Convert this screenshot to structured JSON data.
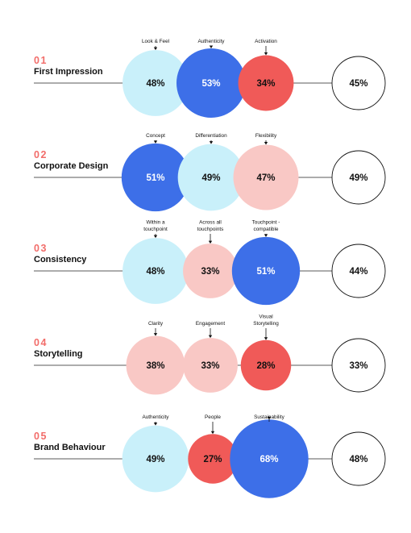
{
  "colors": {
    "dark_blue": "#3d6fe8",
    "light_blue": "#c9f0fa",
    "pink": "#f9c8c5",
    "red": "#f05a58",
    "total_fill": "#ffffff",
    "number_color": "#f26d6a",
    "line": "#222222"
  },
  "chart_data": {
    "type": "bubble-rows",
    "sections": [
      {
        "number": "01",
        "title": "First Impression",
        "bubbles": [
          {
            "label": [
              "Look & Feel"
            ],
            "value": 48,
            "display": "48%",
            "color": "light_blue"
          },
          {
            "label": [
              "Authenticity"
            ],
            "value": 53,
            "display": "53%",
            "color": "dark_blue"
          },
          {
            "label": [
              "Activation"
            ],
            "value": 34,
            "display": "34%",
            "color": "red"
          }
        ],
        "total": {
          "value": 45,
          "display": "45%"
        }
      },
      {
        "number": "02",
        "title": "Corporate Design",
        "bubbles": [
          {
            "label": [
              "Concept"
            ],
            "value": 51,
            "display": "51%",
            "color": "dark_blue"
          },
          {
            "label": [
              "Differentiation"
            ],
            "value": 49,
            "display": "49%",
            "color": "light_blue"
          },
          {
            "label": [
              "Flexibility"
            ],
            "value": 47,
            "display": "47%",
            "color": "pink"
          }
        ],
        "total": {
          "value": 49,
          "display": "49%"
        }
      },
      {
        "number": "03",
        "title": "Consistency",
        "bubbles": [
          {
            "label": [
              "Within a",
              "touchpoint"
            ],
            "value": 48,
            "display": "48%",
            "color": "light_blue"
          },
          {
            "label": [
              "Across all",
              "touchpoints"
            ],
            "value": 33,
            "display": "33%",
            "color": "pink"
          },
          {
            "label": [
              "Touchpoint -",
              "compatible"
            ],
            "value": 51,
            "display": "51%",
            "color": "dark_blue"
          }
        ],
        "total": {
          "value": 44,
          "display": "44%"
        }
      },
      {
        "number": "04",
        "title": "Storytelling",
        "bubbles": [
          {
            "label": [
              "Clarity"
            ],
            "value": 38,
            "display": "38%",
            "color": "pink"
          },
          {
            "label": [
              "Engagement"
            ],
            "value": 33,
            "display": "33%",
            "color": "pink"
          },
          {
            "label": [
              "Visual",
              "Storytelling"
            ],
            "value": 28,
            "display": "28%",
            "color": "red"
          }
        ],
        "total": {
          "value": 33,
          "display": "33%"
        }
      },
      {
        "number": "05",
        "title": "Brand Behaviour",
        "bubbles": [
          {
            "label": [
              "Authenticity"
            ],
            "value": 49,
            "display": "49%",
            "color": "light_blue"
          },
          {
            "label": [
              "People"
            ],
            "value": 27,
            "display": "27%",
            "color": "red"
          },
          {
            "label": [
              "Sustainability"
            ],
            "value": 68,
            "display": "68%",
            "color": "dark_blue"
          }
        ],
        "total": {
          "value": 48,
          "display": "48%"
        }
      }
    ]
  }
}
